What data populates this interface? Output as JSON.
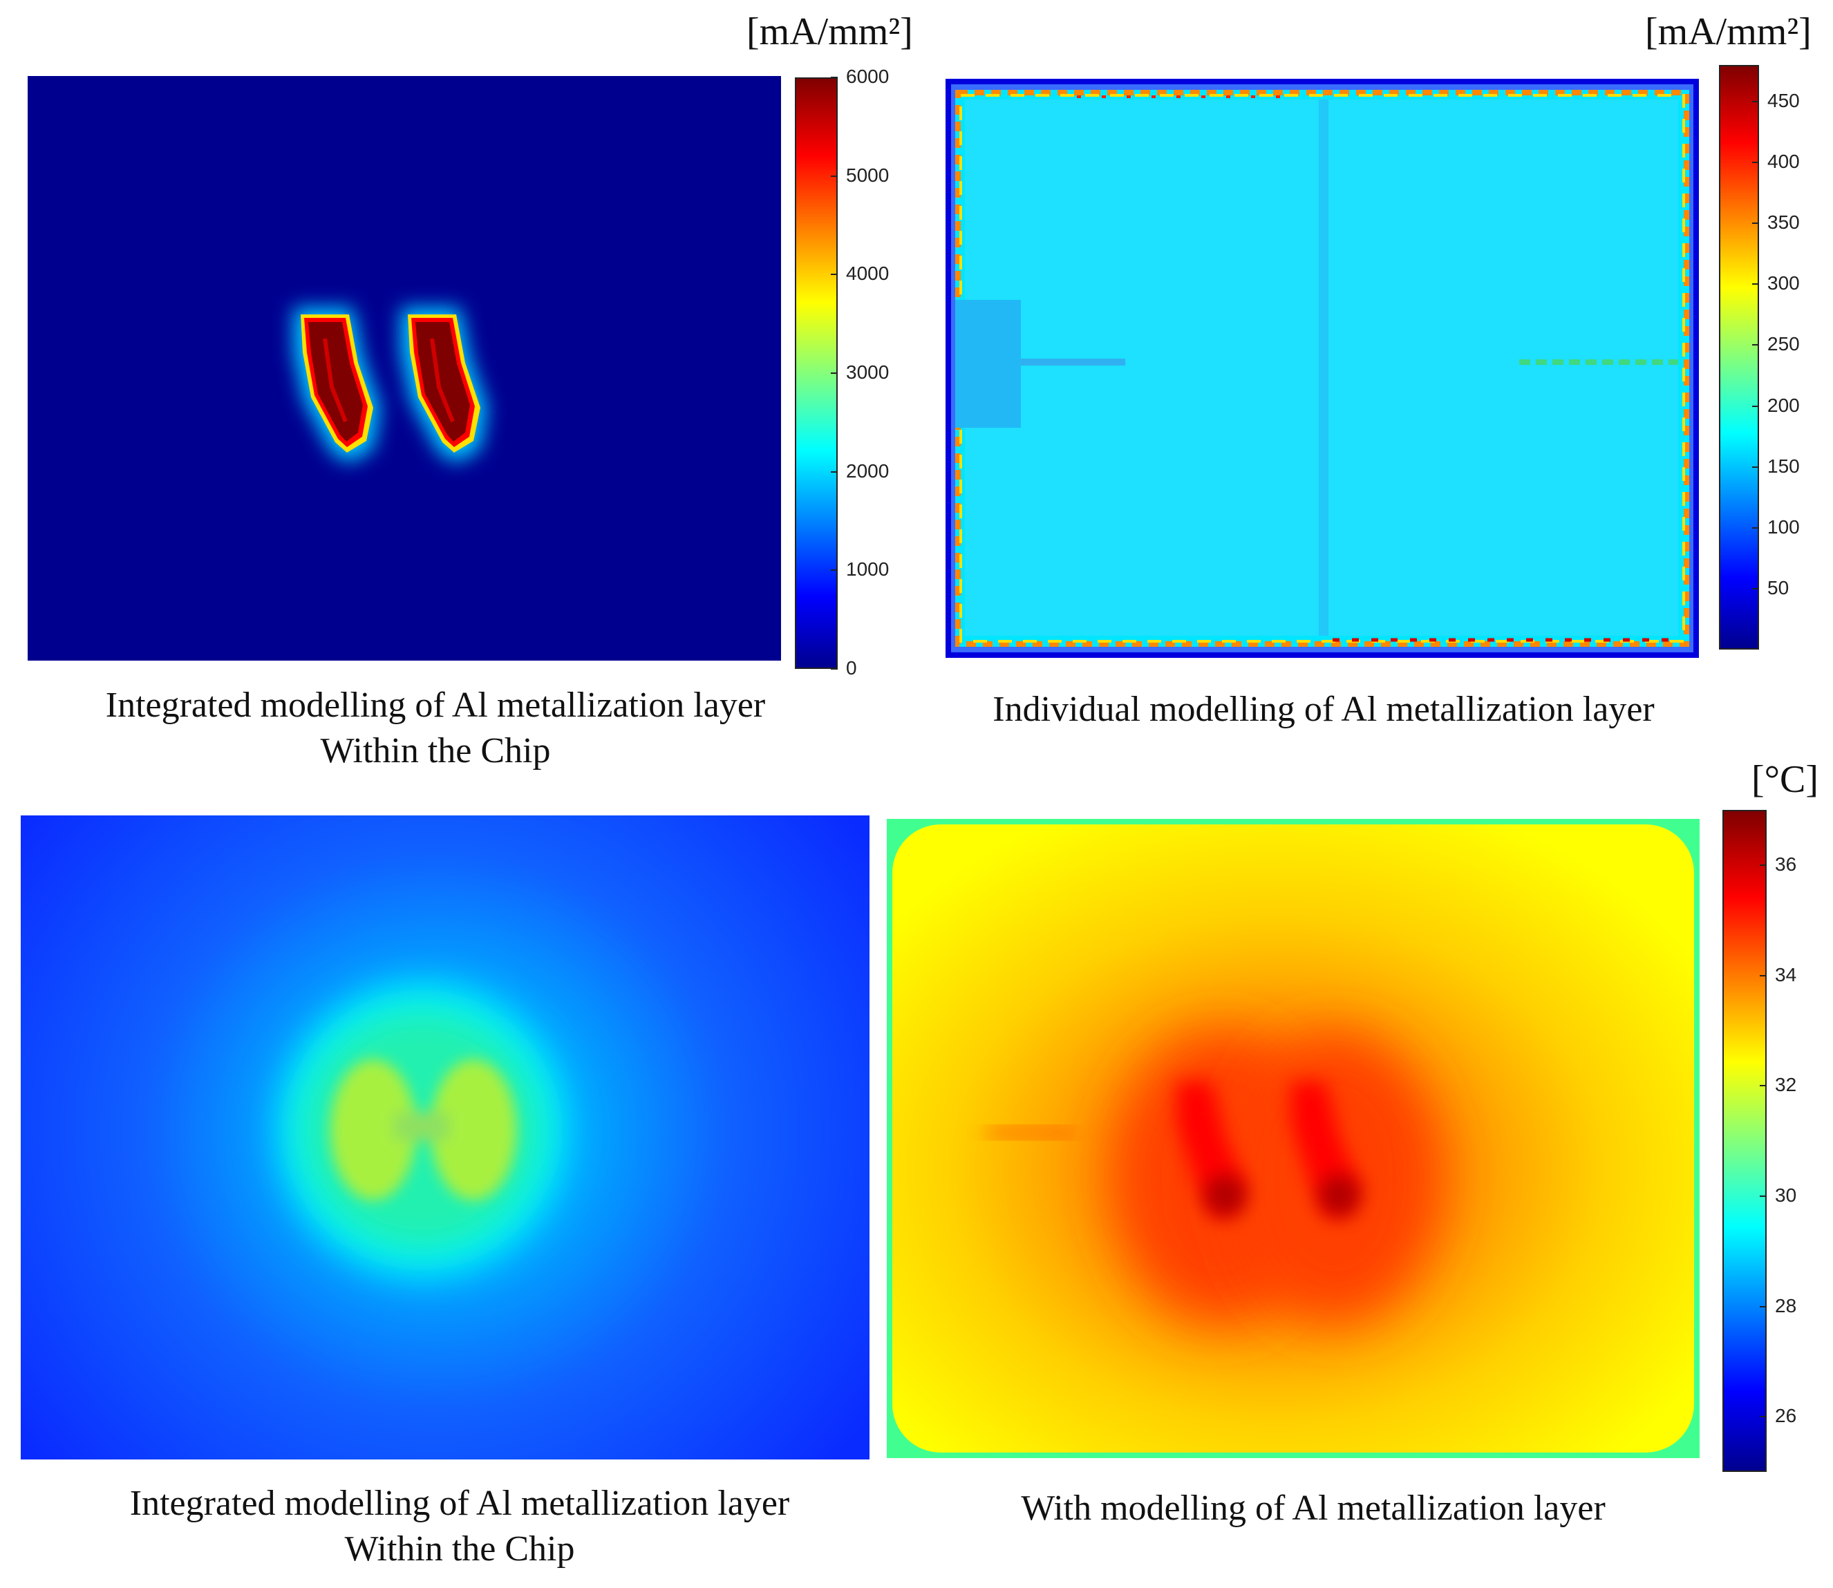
{
  "chart_data": [
    {
      "type": "heatmap",
      "caption_lines": [
        "Integrated modelling of Al metallization layer",
        "Within the Chip"
      ],
      "colorbar": {
        "unit": "[mA/mm²]",
        "ticks": [
          0,
          1000,
          2000,
          3000,
          4000,
          5000,
          6000
        ],
        "range": [
          0,
          6000
        ]
      },
      "colors": [
        "#00008f",
        "#0000ff",
        "#00ffff",
        "#ffff00",
        "#ff0000",
        "#800000"
      ]
    },
    {
      "type": "heatmap",
      "caption_lines": [
        "Individual modelling of Al metallization layer"
      ],
      "colorbar": {
        "unit": "[mA/mm²]",
        "ticks": [
          50,
          100,
          150,
          200,
          250,
          300,
          350,
          400,
          450
        ],
        "range": [
          0,
          480
        ]
      },
      "colors": [
        "#00008f",
        "#0000ff",
        "#00ffff",
        "#ffff00",
        "#ff0000",
        "#800000"
      ]
    },
    {
      "type": "heatmap",
      "caption_lines": [
        "Integrated modelling of Al metallization layer",
        "Within the Chip"
      ],
      "colorbar": null
    },
    {
      "type": "heatmap",
      "caption_lines": [
        "With modelling of Al metallization layer"
      ],
      "colorbar": {
        "unit": "[°C]",
        "ticks": [
          26,
          28,
          30,
          32,
          34,
          36
        ],
        "range": [
          25,
          37
        ]
      },
      "colors": [
        "#00008f",
        "#0000ff",
        "#00ffff",
        "#ffff00",
        "#ff0000",
        "#800000"
      ]
    }
  ]
}
